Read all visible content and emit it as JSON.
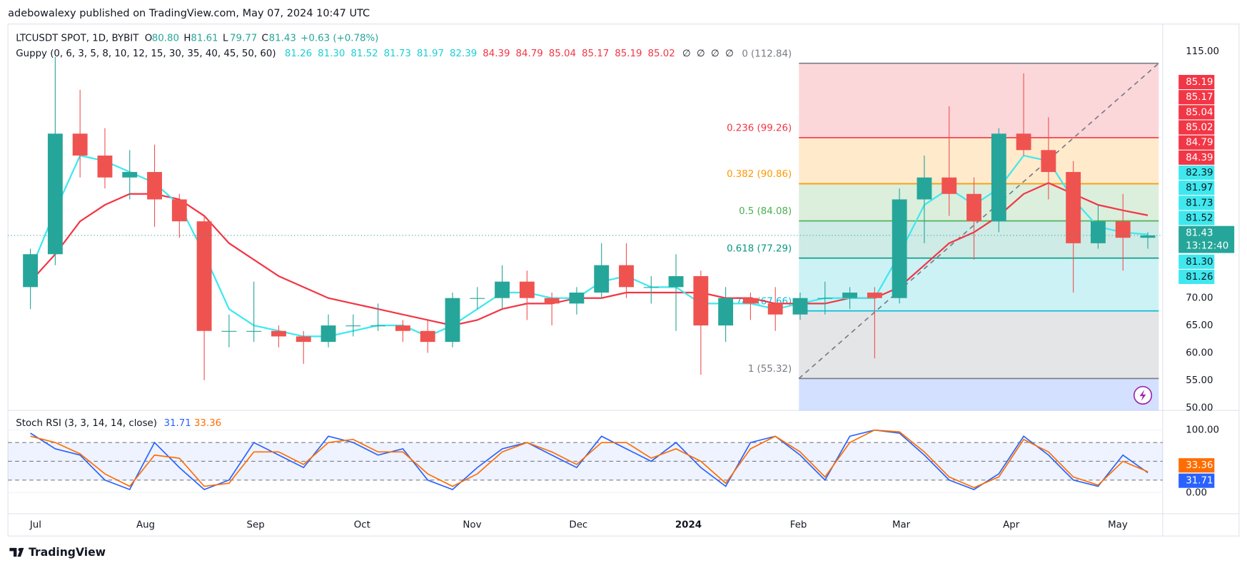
{
  "header": {
    "published": "adebowalexy published on TradingView.com, May 07, 2024 10:47 UTC",
    "brand": "TradingView"
  },
  "chart_data": [
    {
      "type": "candlestick",
      "title": "LTCUSDT SPOT, 1D, BYBIT",
      "legend": [
        {
          "key": "O",
          "value": "80.80"
        },
        {
          "key": "H",
          "value": "81.61"
        },
        {
          "key": "L",
          "value": "79.77"
        },
        {
          "key": "C",
          "value": "81.43"
        }
      ],
      "change": "+0.63 (+0.78%)",
      "countdown": "13:12:40",
      "up_color": "#26a69a",
      "down_color": "#ef5350",
      "grid": true,
      "x": [
        0.5,
        1.5,
        2.5,
        3.5,
        4.5,
        5.5,
        6.5,
        7.5,
        8.5,
        9.5,
        10.5,
        11.5,
        12.5,
        13.5,
        14.5,
        15.5,
        16.5,
        17.5,
        18.5,
        19.5,
        20.5,
        21.5,
        22.5,
        23.5,
        24.5,
        25.5,
        26.5,
        27.5,
        28.5,
        29.5,
        30.5,
        31.5,
        32.5,
        33.5,
        34.5,
        35.5,
        36.5,
        37.5,
        38.5,
        39.5,
        40.5,
        41.5,
        42.5,
        43.5,
        44.5,
        45.5
      ],
      "open": [
        72,
        78,
        100,
        96,
        92,
        93,
        88,
        84,
        64,
        64,
        64,
        63,
        62,
        65,
        65,
        65,
        64,
        62,
        70,
        70,
        73,
        70,
        69,
        71,
        76,
        72,
        72,
        74,
        65,
        70,
        69,
        67,
        70,
        70,
        71,
        70,
        88,
        92,
        89,
        84,
        100,
        97,
        93,
        80,
        84,
        81
      ],
      "high": [
        79,
        114,
        108,
        101,
        97,
        98,
        89,
        85,
        67,
        73,
        65,
        64,
        67,
        67,
        69,
        66,
        66,
        71,
        72,
        76,
        75,
        71,
        72,
        80,
        80,
        74,
        78,
        75,
        72,
        71,
        72,
        71,
        73,
        72,
        72,
        90,
        96,
        105,
        92,
        101,
        111,
        103,
        95,
        87,
        89,
        82
      ],
      "low": [
        68,
        76,
        92,
        90,
        88,
        83,
        81,
        55,
        61,
        62,
        61,
        58,
        61,
        63,
        64,
        62,
        60,
        61,
        68,
        68,
        66,
        65,
        67,
        70,
        70,
        69,
        64,
        56,
        62,
        66,
        64,
        66,
        67,
        68,
        59,
        69,
        80,
        85,
        77,
        82,
        96,
        88,
        71,
        79,
        75,
        79
      ],
      "close": [
        78,
        100,
        96,
        92,
        93,
        88,
        84,
        64,
        64,
        64,
        63,
        62,
        65,
        65,
        65,
        64,
        62,
        70,
        70,
        73,
        70,
        69,
        71,
        76,
        72,
        72,
        74,
        65,
        70,
        69,
        67,
        70,
        70,
        71,
        70,
        88,
        92,
        89,
        84,
        100,
        97,
        93,
        80,
        84,
        81,
        81.43
      ],
      "xlim": [
        -0.34,
        46.1
      ],
      "xticks": [
        {
          "value": 0.71,
          "label": "Jul"
        },
        {
          "value": 5.14,
          "label": "Aug"
        },
        {
          "value": 9.57,
          "label": "Sep"
        },
        {
          "value": 13.86,
          "label": "Oct"
        },
        {
          "value": 18.29,
          "label": "Nov"
        },
        {
          "value": 22.57,
          "label": "Dec"
        },
        {
          "value": 27,
          "label": "2024"
        },
        {
          "value": 31.43,
          "label": "Feb"
        },
        {
          "value": 35.57,
          "label": "Mar"
        },
        {
          "value": 40,
          "label": "Apr"
        },
        {
          "value": 44.29,
          "label": "May"
        }
      ],
      "ylim": [
        49.5,
        120
      ],
      "yticks": [
        {
          "value": 115,
          "label": "115.00"
        },
        {
          "value": 70,
          "label": "70.00"
        },
        {
          "value": 65,
          "label": "65.00"
        },
        {
          "value": 60,
          "label": "60.00"
        },
        {
          "value": 55,
          "label": "55.00"
        },
        {
          "value": 50,
          "label": "50.00"
        }
      ],
      "guppy": {
        "label": "Guppy (0, 6, 3, 5, 8, 10, 12, 15, 30, 35, 40, 45, 50, 60)",
        "values": [
          81.26,
          81.3,
          81.52,
          81.73,
          81.97,
          82.39,
          84.39,
          84.79,
          85.04,
          85.17,
          85.19,
          85.02
        ],
        "value_labels": [
          "81.26",
          "81.30",
          "81.52",
          "81.73",
          "81.97",
          "82.39",
          "84.39",
          "84.79",
          "85.04",
          "85.17",
          "85.19",
          "85.02"
        ],
        "empty": [
          "∅",
          "∅",
          "∅",
          "∅"
        ],
        "short_color": "#3ee8ee",
        "long_color": "#f23645",
        "short": [
          75,
          86,
          96,
          95,
          93,
          91,
          87,
          78,
          68,
          65,
          64,
          63,
          63,
          64,
          65,
          65,
          63,
          65,
          68,
          71,
          71,
          70,
          70,
          73,
          74,
          72,
          72,
          69,
          69,
          69,
          68,
          69,
          70,
          70,
          70,
          78,
          87,
          90,
          87,
          90,
          96,
          95,
          88,
          83,
          82,
          81.6
        ],
        "long": [
          73,
          78,
          84,
          87,
          89,
          89,
          88,
          85,
          80,
          77,
          74,
          72,
          70,
          69,
          68,
          67,
          66,
          65,
          66,
          68,
          69,
          69,
          70,
          70,
          71,
          71,
          71,
          71,
          70,
          70,
          69,
          69,
          69,
          70,
          70,
          72,
          76,
          80,
          82,
          85,
          89,
          91,
          89,
          87,
          86,
          85.1
        ]
      },
      "fib": {
        "x": [
          31.45,
          45.94
        ],
        "below_color": "#2962ff",
        "levels": [
          {
            "value": 112.84,
            "label": "0 (112.84)",
            "color": "#787b86"
          },
          {
            "value": 99.26,
            "label": "0.236 (99.26)",
            "color": "#f23645"
          },
          {
            "value": 90.86,
            "label": "0.382 (90.86)",
            "color": "#ff9800"
          },
          {
            "value": 84.08,
            "label": "0.5 (84.08)",
            "color": "#4caf50"
          },
          {
            "value": 77.29,
            "label": "0.618 (77.29)",
            "color": "#089981"
          },
          {
            "value": 67.66,
            "label": "0.786 (67.66)",
            "color": "#00bcd4"
          },
          {
            "value": 55.32,
            "label": "1 (55.32)",
            "color": "#787b86"
          }
        ]
      }
    },
    {
      "type": "line",
      "title": "Stoch RSI (3, 3, 14, 14, close)",
      "x": [
        0.5,
        1.5,
        2.5,
        3.5,
        4.5,
        5.5,
        6.5,
        7.5,
        8.5,
        9.5,
        10.5,
        11.5,
        12.5,
        13.5,
        14.5,
        15.5,
        16.5,
        17.5,
        18.5,
        19.5,
        20.5,
        21.5,
        22.5,
        23.5,
        24.5,
        25.5,
        26.5,
        27.5,
        28.5,
        29.5,
        30.5,
        31.5,
        32.5,
        33.5,
        34.5,
        35.5,
        36.5,
        37.5,
        38.5,
        39.5,
        40.5,
        41.5,
        42.5,
        43.5,
        44.5,
        45.5
      ],
      "xlim": [
        -0.34,
        46.1
      ],
      "ylim": [
        -30,
        125
      ],
      "yticks": [
        {
          "value": 100,
          "label": "100.00"
        },
        {
          "value": 0,
          "label": "0.00"
        }
      ],
      "levels": [
        80,
        50,
        20
      ],
      "band_color": "#2962ff",
      "series": [
        {
          "color": "#2962ff",
          "values": [
            95,
            70,
            60,
            20,
            5,
            80,
            40,
            5,
            20,
            80,
            60,
            40,
            90,
            80,
            60,
            70,
            20,
            5,
            40,
            70,
            80,
            60,
            40,
            90,
            70,
            50,
            80,
            40,
            10,
            80,
            90,
            60,
            20,
            90,
            100,
            95,
            60,
            20,
            5,
            30,
            90,
            60,
            20,
            10,
            60,
            31.71
          ]
        },
        {
          "color": "#ff6d00",
          "values": [
            90,
            80,
            62,
            30,
            10,
            60,
            55,
            10,
            15,
            65,
            65,
            45,
            80,
            85,
            65,
            65,
            30,
            10,
            30,
            65,
            80,
            65,
            45,
            80,
            80,
            55,
            70,
            50,
            15,
            70,
            90,
            65,
            25,
            80,
            100,
            97,
            65,
            25,
            8,
            25,
            85,
            65,
            25,
            12,
            50,
            33.36
          ]
        }
      ]
    }
  ]
}
